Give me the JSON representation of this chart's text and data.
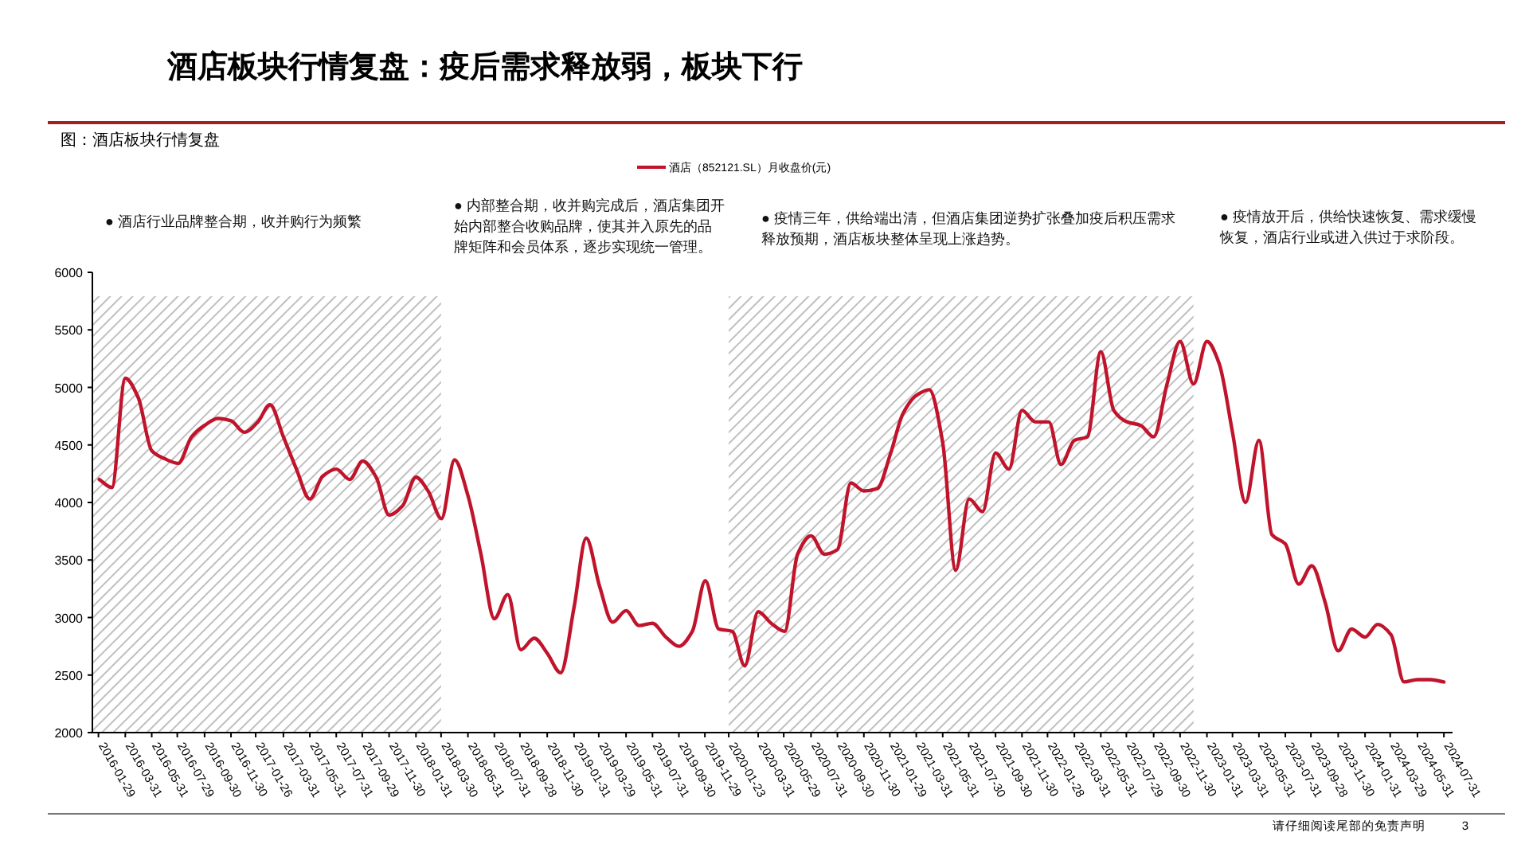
{
  "chart_data": {
    "type": "line",
    "title": "酒店板块行情复盘：疫后需求释放弱，板块下行",
    "subtitle": "图：酒店板块行情复盘",
    "annotations": [
      "● 酒店行业品牌整合期，收并购行为频繁",
      "● 内部整合期，收并购完成后，酒店集团开始内部整合收购品牌，使其并入原先的品牌矩阵和会员体系，逐步实现统一管理。",
      "● 疫情三年，供给端出清，但酒店集团逆势扩张叠加疫后积压需求释放预期，酒店板块整体呈现上涨趋势。",
      "● 疫情放开后，供给快速恢复、需求缓慢恢复，酒店行业或进入供过于求阶段。",
      "请仔细阅读尾部的免责声明",
      "3"
    ],
    "x": [
      "2016-01-31",
      "2016-02-29",
      "2016-03-31",
      "2016-04-30",
      "2016-05-31",
      "2016-06-30",
      "2016-07-31",
      "2016-08-31",
      "2016-09-30",
      "2016-10-31",
      "2016-11-30",
      "2016-12-31",
      "2017-01-31",
      "2017-02-28",
      "2017-03-31",
      "2017-04-30",
      "2017-05-31",
      "2017-06-30",
      "2017-07-31",
      "2017-08-31",
      "2017-09-30",
      "2017-10-31",
      "2017-11-30",
      "2017-12-31",
      "2018-01-31",
      "2018-02-28",
      "2018-03-31",
      "2018-04-30",
      "2018-05-31",
      "2018-06-30",
      "2018-07-31",
      "2018-08-31",
      "2018-09-30",
      "2018-10-31",
      "2018-11-30",
      "2018-12-31",
      "2019-01-31",
      "2019-02-28",
      "2019-03-31",
      "2019-04-30",
      "2019-05-31",
      "2019-06-30",
      "2019-07-31",
      "2019-08-31",
      "2019-09-30",
      "2019-10-31",
      "2019-11-30",
      "2019-12-31",
      "2020-01-31",
      "2020-02-29",
      "2020-03-31",
      "2020-04-30",
      "2020-05-31",
      "2020-06-30",
      "2020-07-31",
      "2020-08-31",
      "2020-09-30",
      "2020-10-31",
      "2020-11-30",
      "2020-12-31",
      "2021-01-31",
      "2021-02-28",
      "2021-03-31",
      "2021-04-30",
      "2021-05-31",
      "2021-06-30",
      "2021-07-31",
      "2021-08-31",
      "2021-09-30",
      "2021-10-31",
      "2021-11-30",
      "2021-12-31",
      "2022-01-31",
      "2022-02-28",
      "2022-03-31",
      "2022-04-30",
      "2022-05-31",
      "2022-06-30",
      "2022-07-31",
      "2022-08-31",
      "2022-09-30",
      "2022-10-31",
      "2022-11-30",
      "2022-12-31",
      "2023-01-31",
      "2023-02-28",
      "2023-03-31",
      "2023-04-30",
      "2023-05-31",
      "2023-06-30",
      "2023-07-31",
      "2023-08-31",
      "2023-09-30",
      "2023-10-31",
      "2023-11-30",
      "2023-12-31",
      "2024-01-31",
      "2024-02-29",
      "2024-03-31",
      "2024-04-30",
      "2024-05-31",
      "2024-06-30",
      "2024-07-31"
    ],
    "series": [
      {
        "name": "酒店（852121.SL）月收盘价(元)",
        "color": "#c0142c",
        "values": [
          4200,
          4130,
          5080,
          4910,
          4450,
          4380,
          4340,
          4570,
          4670,
          4730,
          4710,
          4610,
          4700,
          4850,
          4570,
          4290,
          4030,
          4230,
          4290,
          4200,
          4360,
          4220,
          3890,
          3970,
          4220,
          4100,
          3860,
          4370,
          4060,
          3550,
          2990,
          3200,
          2720,
          2820,
          2690,
          2520,
          3090,
          3690,
          3270,
          2960,
          3060,
          2930,
          2950,
          2830,
          2750,
          2880,
          3320,
          2900,
          2880,
          2580,
          3050,
          2950,
          2880,
          3550,
          3710,
          3550,
          3590,
          4170,
          4100,
          4120,
          4430,
          4770,
          4930,
          4980,
          4520,
          3410,
          4030,
          3920,
          4430,
          4290,
          4800,
          4700,
          4700,
          4330,
          4540,
          4570,
          5310,
          4800,
          4700,
          4670,
          4570,
          5030,
          5400,
          5030,
          5400,
          5210,
          4610,
          4000,
          4540,
          3720,
          3640,
          3290,
          3450,
          3130,
          2710,
          2900,
          2830,
          2940,
          2850,
          2440,
          2460,
          2460,
          2440
        ]
      }
    ],
    "ylim": [
      2000,
      6000
    ],
    "yticks": [
      2000,
      2500,
      3000,
      3500,
      4000,
      4500,
      5000,
      5500,
      6000
    ],
    "xlim": [
      "2016-01-15",
      "2024-08-20"
    ],
    "xticks": [
      "2016-01-29",
      "2016-03-31",
      "2016-05-31",
      "2016-07-29",
      "2016-09-30",
      "2016-11-30",
      "2017-01-26",
      "2017-03-31",
      "2017-05-31",
      "2017-07-31",
      "2017-09-29",
      "2017-11-30",
      "2018-01-31",
      "2018-03-30",
      "2018-05-31",
      "2018-07-31",
      "2018-09-28",
      "2018-11-30",
      "2019-01-31",
      "2019-03-29",
      "2019-05-31",
      "2019-07-31",
      "2019-09-30",
      "2019-11-29",
      "2020-01-23",
      "2020-03-31",
      "2020-05-29",
      "2020-07-31",
      "2020-09-30",
      "2020-11-30",
      "2021-01-29",
      "2021-03-31",
      "2021-05-31",
      "2021-07-30",
      "2021-09-30",
      "2021-11-30",
      "2022-01-28",
      "2022-03-31",
      "2022-05-31",
      "2022-07-29",
      "2022-09-30",
      "2022-11-30",
      "2023-01-31",
      "2023-03-31",
      "2023-05-31",
      "2023-07-31",
      "2023-09-28",
      "2023-11-30",
      "2024-01-31",
      "2024-03-29",
      "2024-05-31",
      "2024-07-31"
    ],
    "bands": [
      {
        "axis": "x",
        "from": "2016-01-15",
        "to": "2018-03-30",
        "color": "#bfbfbf"
      },
      {
        "axis": "x",
        "from": "2020-01-23",
        "to": "2022-12-31",
        "color": "#bfbfbf"
      }
    ],
    "legend": "top"
  }
}
